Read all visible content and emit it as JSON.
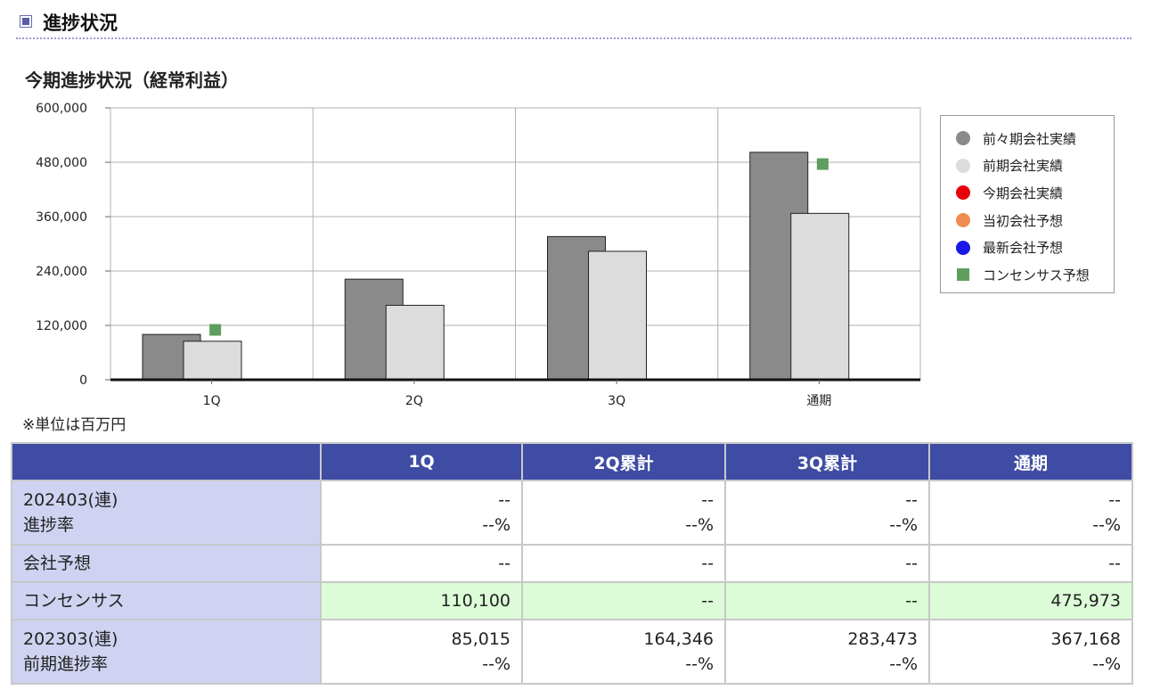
{
  "section": {
    "title": "進捗状況"
  },
  "chart_data": {
    "type": "bar",
    "title": "今期進捗状況（経常利益）",
    "categories": [
      "1Q",
      "2Q",
      "3Q",
      "通期"
    ],
    "series": [
      {
        "name": "前々期会社実績",
        "values": [
          100000,
          222000,
          316000,
          502000
        ],
        "color": "#8a8a8a"
      },
      {
        "name": "前期会社実績",
        "values": [
          85015,
          164346,
          283473,
          367168
        ],
        "color": "#dcdcdc"
      }
    ],
    "markers": [
      {
        "name": "今期会社実績",
        "shape": "circle",
        "color": "#e8000b",
        "values": [
          null,
          null,
          null,
          null
        ]
      },
      {
        "name": "当初会社予想",
        "shape": "circle",
        "color": "#f08c50",
        "values": [
          null,
          null,
          null,
          null
        ]
      },
      {
        "name": "最新会社予想",
        "shape": "circle",
        "color": "#1a1ae6",
        "values": [
          null,
          null,
          null,
          null
        ]
      },
      {
        "name": "コンセンサス予想",
        "shape": "square",
        "color": "#5e9e5e",
        "values": [
          110100,
          null,
          null,
          475973
        ]
      }
    ],
    "yticks": [
      "0",
      "120,000",
      "240,000",
      "360,000",
      "480,000",
      "600,000"
    ],
    "ylim": [
      0,
      600000
    ],
    "grid": true,
    "legend_position": "right"
  },
  "unit_note": "※単位は百万円",
  "table": {
    "headers": [
      "1Q",
      "2Q累計",
      "3Q累計",
      "通期"
    ],
    "rows": [
      {
        "label": [
          "202403(連)",
          "進捗率"
        ],
        "cells": [
          [
            "--",
            "--%"
          ],
          [
            "--",
            "--%"
          ],
          [
            "--",
            "--%"
          ],
          [
            "--",
            "--%"
          ]
        ],
        "highlight": false
      },
      {
        "label": [
          "会社予想"
        ],
        "cells": [
          [
            "--"
          ],
          [
            "--"
          ],
          [
            "--"
          ],
          [
            "--"
          ]
        ],
        "highlight": false
      },
      {
        "label": [
          "コンセンサス"
        ],
        "cells": [
          [
            "110,100"
          ],
          [
            "--"
          ],
          [
            "--"
          ],
          [
            "475,973"
          ]
        ],
        "highlight": true
      },
      {
        "label": [
          "202303(連)",
          "前期進捗率"
        ],
        "cells": [
          [
            "85,015",
            "--%"
          ],
          [
            "164,346",
            "--%"
          ],
          [
            "283,473",
            "--%"
          ],
          [
            "367,168",
            "--%"
          ]
        ],
        "highlight": false
      }
    ]
  }
}
